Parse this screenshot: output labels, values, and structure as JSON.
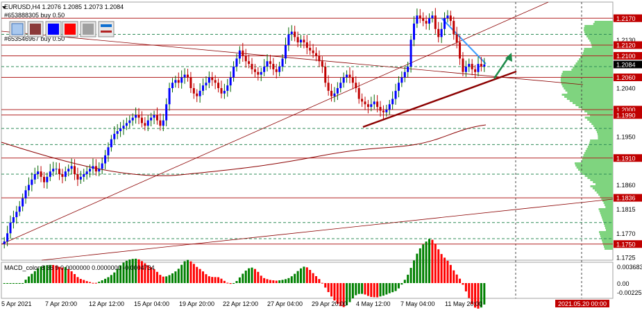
{
  "chart_data": {
    "type": "candlestick",
    "symbol_header": "EURUSD,H4  1.2076 1.2085 1.2073 1.2084",
    "orders": [
      "#653888305 buy 0.50",
      "#653546967 buy 0.50"
    ],
    "price_labels": [
      {
        "text": "1.2170",
        "value": 1.217,
        "hl": true
      },
      {
        "text": "1.2130",
        "value": 1.213,
        "hl": false
      },
      {
        "text": "1.2120",
        "value": 1.212,
        "hl": true
      },
      {
        "text": "1.2100",
        "value": 1.21,
        "hl": true
      },
      {
        "text": "1.2084",
        "value": 1.2084,
        "hl": "current"
      },
      {
        "text": "1.2060",
        "value": 1.206,
        "hl": true
      },
      {
        "text": "1.2040",
        "value": 1.204,
        "hl": false
      },
      {
        "text": "1.2000",
        "value": 1.2,
        "hl": true
      },
      {
        "text": "1.1990",
        "value": 1.199,
        "hl": true
      },
      {
        "text": "1.1950",
        "value": 1.195,
        "hl": false
      },
      {
        "text": "1.1910",
        "value": 1.191,
        "hl": true
      },
      {
        "text": "1.1860",
        "value": 1.186,
        "hl": false
      },
      {
        "text": "1.1836",
        "value": 1.1836,
        "hl": true
      },
      {
        "text": "1.1815",
        "value": 1.1815,
        "hl": false
      },
      {
        "text": "1.1770",
        "value": 1.177,
        "hl": false
      },
      {
        "text": "1.1750",
        "value": 1.175,
        "hl": true
      },
      {
        "text": "1.1725",
        "value": 1.1725,
        "hl": false
      }
    ],
    "horizontal_levels": [
      1.217,
      1.212,
      1.21,
      1.206,
      1.2,
      1.199,
      1.191,
      1.1836,
      1.175
    ],
    "ylim": [
      1.172,
      1.22
    ],
    "x_labels": [
      "5 Apr 2021",
      "7 Apr 20:00",
      "12 Apr 12:00",
      "15 Apr 04:00",
      "19 Apr 20:00",
      "22 Apr 12:00",
      "27 Apr 04:00",
      "29 Apr 20:00",
      "4 May 12:00",
      "7 May 04:00",
      "11 May 20:00"
    ],
    "cursor_time": "2021.05.20 00:00",
    "closes": [
      1.1755,
      1.177,
      1.179,
      1.18,
      1.181,
      1.182,
      1.1835,
      1.185,
      1.186,
      1.187,
      1.188,
      1.1885,
      1.1875,
      1.1865,
      1.1875,
      1.1885,
      1.189,
      1.189,
      1.188,
      1.1875,
      1.1885,
      1.189,
      1.1895,
      1.188,
      1.187,
      1.1875,
      1.188,
      1.1885,
      1.189,
      1.1895,
      1.1885,
      1.189,
      1.19,
      1.1915,
      1.193,
      1.1945,
      1.1955,
      1.196,
      1.1965,
      1.197,
      1.1975,
      1.198,
      1.1985,
      1.199,
      1.1985,
      1.1975,
      1.197,
      1.198,
      1.1985,
      1.199,
      1.198,
      1.197,
      1.198,
      1.201,
      1.204,
      1.205,
      1.2055,
      1.205,
      1.206,
      1.2065,
      1.206,
      1.204,
      1.203,
      1.2025,
      1.2035,
      1.2045,
      1.205,
      1.206,
      1.2055,
      1.205,
      1.204,
      1.203,
      1.2035,
      1.2045,
      1.206,
      1.208,
      1.2095,
      1.211,
      1.21,
      1.209,
      1.2085,
      1.2075,
      1.207,
      1.2065,
      1.207,
      1.208,
      1.209,
      1.2085,
      1.2075,
      1.207,
      1.208,
      1.2095,
      1.212,
      1.214,
      1.2145,
      1.2135,
      1.2125,
      1.213,
      1.2125,
      1.2115,
      1.211,
      1.2105,
      1.21,
      1.209,
      1.208,
      1.205,
      1.2035,
      1.2025,
      1.203,
      1.204,
      1.205,
      1.206,
      1.2065,
      1.206,
      1.205,
      1.204,
      1.202,
      1.2015,
      1.201,
      1.2005,
      1.201,
      1.2015,
      1.2005,
      1.1998,
      1.1995,
      1.2,
      1.201,
      1.202,
      1.2035,
      1.205,
      1.206,
      1.207,
      1.208,
      1.213,
      1.216,
      1.2175,
      1.217,
      1.2165,
      1.216,
      1.217,
      1.2175,
      1.215,
      1.2135,
      1.215,
      1.217,
      1.2175,
      1.2165,
      1.214,
      1.2125,
      1.2095,
      1.207,
      1.208,
      1.2085,
      1.2075,
      1.207,
      1.2085,
      1.208,
      1.2084
    ],
    "macd": {
      "label": "MACD_color 8 36 9 0.0000000 0.0000000 -0.0004734",
      "ticks": [
        "0.003683",
        "0.00",
        "-0.00225"
      ],
      "ylim": [
        -0.00225,
        0.003683
      ]
    }
  },
  "toolbar": {
    "buttons": [
      {
        "name": "color-swatch-light-blue",
        "color": "#a9c8ee"
      },
      {
        "name": "color-swatch-brown",
        "color": "#8b3a3a"
      },
      {
        "name": "color-swatch-blue",
        "color": "#0000ff"
      },
      {
        "name": "color-swatch-red",
        "color": "#ff0000"
      },
      {
        "name": "color-swatch-gray",
        "color": "#a0a0a0"
      },
      {
        "name": "line-style-blue-red",
        "color": "#0e6fd1"
      }
    ]
  },
  "colors": {
    "bull": "#006400",
    "bear": "#c00000",
    "bull_body": "#0000ff",
    "level": "#b22222",
    "grid": "#2e8b57",
    "volume_profile": "#7fd47f",
    "macd_pos": "#008000",
    "macd_neg": "#ff0000",
    "arrow": "#1e8b4a",
    "blue_trend": "#3c9cff",
    "ma": "#8b0000"
  }
}
